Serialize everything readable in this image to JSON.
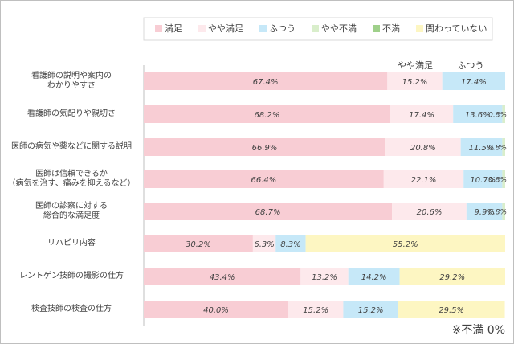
{
  "chart_data": {
    "type": "stacked-barh",
    "categories": [
      "看護師の説明や案内の\nわかりやすさ",
      "看護師の気配りや親切さ",
      "医師の病気や薬などに関する説明",
      "医師は信頼できるか\n（病気を治す、痛みを抑えるなど）",
      "医師の診察に対する\n総合的な満足度",
      "リハビリ内容",
      "レントゲン技師の撮影の仕方",
      "検査技師の検査の仕方"
    ],
    "series": [
      {
        "name": "満足",
        "color": "#f8cdd4",
        "values": [
          67.4,
          68.2,
          66.9,
          66.4,
          68.7,
          30.2,
          43.4,
          40.0
        ],
        "value_labels": [
          "67.4%",
          "68.2%",
          "66.9%",
          "66.4%",
          "68.7%",
          "30.2%",
          "43.4%",
          "40.0%"
        ]
      },
      {
        "name": "やや満足",
        "color": "#fde9ec",
        "values": [
          15.2,
          17.4,
          20.8,
          22.1,
          20.6,
          6.3,
          13.2,
          15.2
        ],
        "value_labels": [
          "15.2%",
          "17.4%",
          "20.8%",
          "22.1%",
          "20.6%",
          "6.3%",
          "13.2%",
          "15.2%"
        ]
      },
      {
        "name": "ふつう",
        "color": "#c6e8f8",
        "values": [
          17.4,
          13.6,
          11.5,
          10.7,
          9.9,
          8.3,
          14.2,
          15.2
        ],
        "value_labels": [
          "17.4%",
          "13.6%",
          "11.5%",
          "10.7%",
          "9.9%",
          "8.3%",
          "14.2%",
          "15.2%"
        ]
      },
      {
        "name": "やや不満",
        "color": "#d9eecb",
        "values": [
          null,
          0.8,
          0.8,
          0.8,
          0.8,
          null,
          null,
          null
        ],
        "value_labels": [
          null,
          "0.8%",
          "0.8%",
          "0.8%",
          "0.8%",
          null,
          null,
          null
        ]
      },
      {
        "name": "不満",
        "color": "#9fd08a",
        "values": [
          null,
          null,
          null,
          null,
          null,
          null,
          null,
          null
        ]
      },
      {
        "name": "関わっていない",
        "color": "#fdf6c2",
        "values": [
          null,
          null,
          null,
          null,
          null,
          55.2,
          29.2,
          29.5
        ],
        "value_labels": [
          null,
          null,
          null,
          null,
          null,
          "55.2%",
          "29.2%",
          "29.5%"
        ]
      }
    ],
    "xlim": [
      0,
      100
    ],
    "annotations": [
      "やや満足",
      "ふつう"
    ],
    "footnote": "※不満 0%"
  }
}
